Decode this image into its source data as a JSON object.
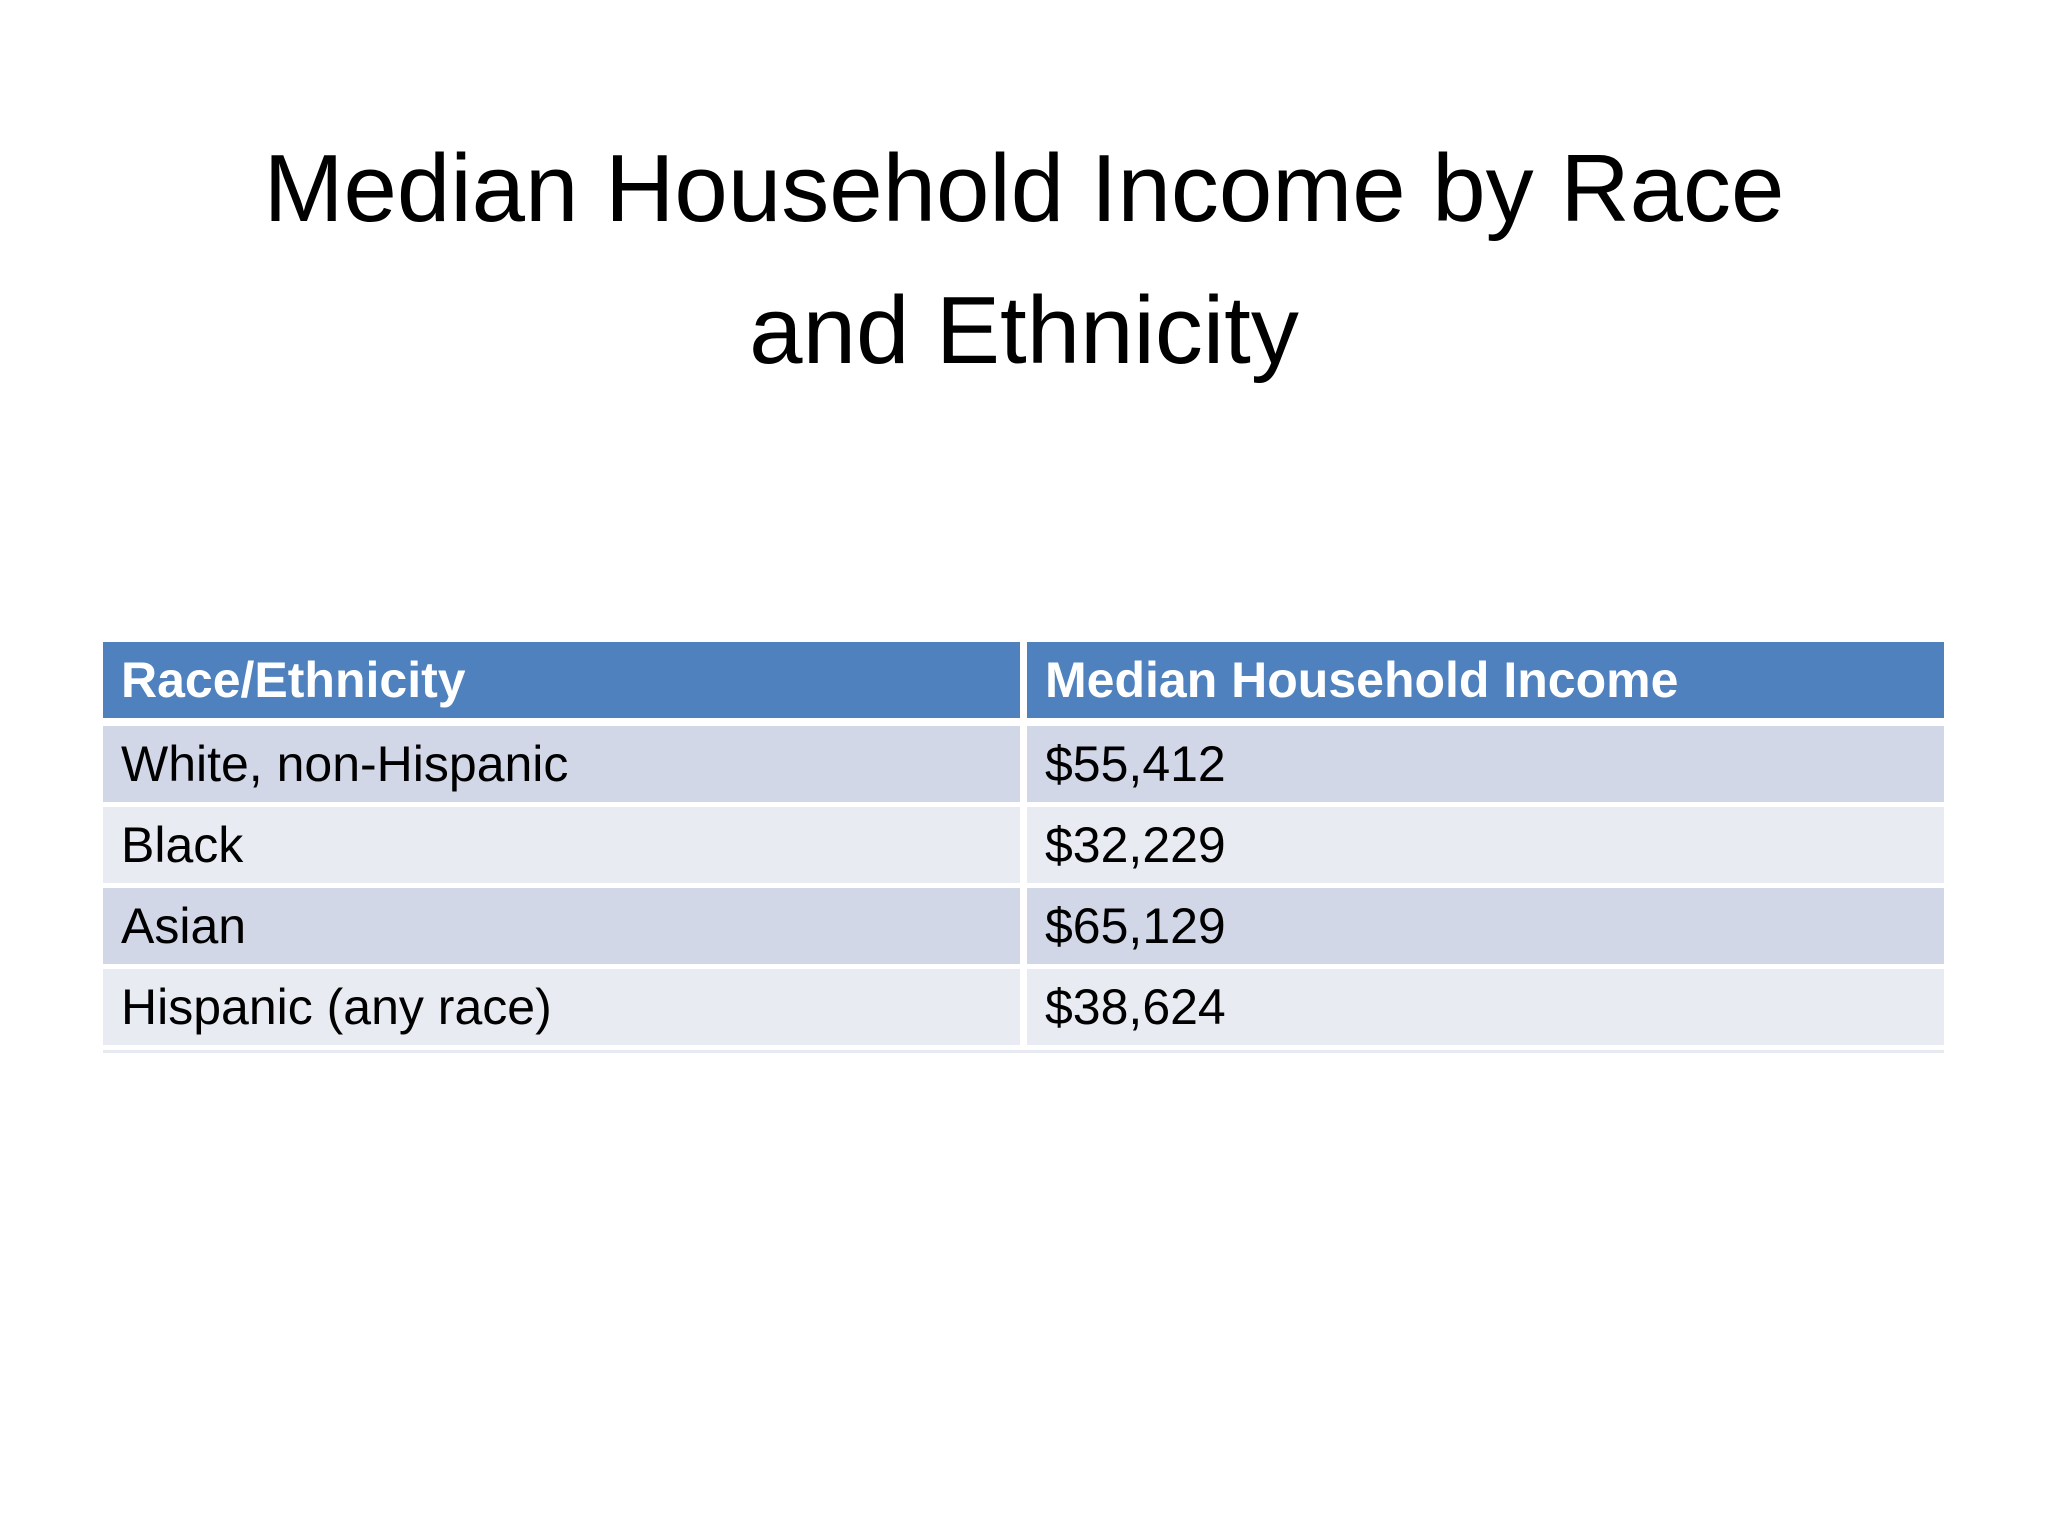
{
  "slide": {
    "title_line1": "Median Household Income by Race",
    "title_line2": "and Ethnicity"
  },
  "table": {
    "columns": [
      "Race/Ethnicity",
      "Median Household Income"
    ],
    "rows": [
      [
        "White, non-Hispanic",
        "$55,412"
      ],
      [
        "Black",
        "$32,229"
      ],
      [
        "Asian",
        "$65,129"
      ],
      [
        "Hispanic (any race)",
        "$38,624"
      ]
    ]
  },
  "chart_data": {
    "type": "table",
    "title": "Median Household Income by Race and Ethnicity",
    "categories": [
      "White, non-Hispanic",
      "Black",
      "Asian",
      "Hispanic (any race)"
    ],
    "values": [
      55412,
      32229,
      65129,
      38624
    ],
    "value_labels": [
      "$55,412",
      "$32,229",
      "$65,129",
      "$38,624"
    ],
    "xlabel": "Race/Ethnicity",
    "ylabel": "Median Household Income"
  },
  "colors": {
    "background": "#FFFFFF",
    "header_bg": "#4E81BD",
    "header_text": "#FFFFFF",
    "row_band_dark": "#D2D7E7",
    "row_band_light": "#E9EBF3",
    "body_text": "#000000",
    "table_bottom_edge": "#E7EAF1"
  }
}
